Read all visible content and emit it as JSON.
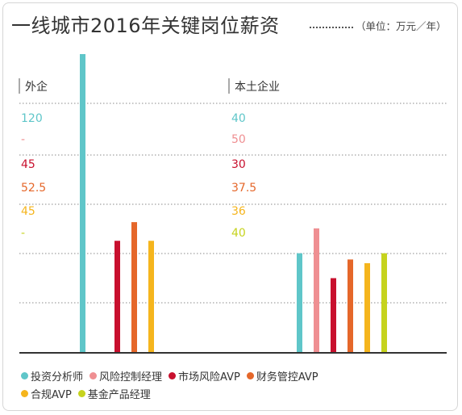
{
  "title": "一线城市2016年关键岗位薪资",
  "unit": "（单位：万元／年）",
  "chart_data": {
    "type": "bar",
    "title": "一线城市2016年关键岗位薪资",
    "unit": "（单位：万元／年）",
    "groups": [
      "外企",
      "本土企业"
    ],
    "series": [
      {
        "name": "投资分析师",
        "color": "#5fc6c9",
        "values": [
          120,
          40
        ],
        "labels": [
          "120",
          "40"
        ]
      },
      {
        "name": "风险控制经理",
        "color": "#ef8f92",
        "values": [
          null,
          50
        ],
        "labels": [
          "-",
          "50"
        ]
      },
      {
        "name": "市场风险AVP",
        "color": "#c8102e",
        "values": [
          45,
          30
        ],
        "labels": [
          "45",
          "30"
        ]
      },
      {
        "name": "财务管控AVP",
        "color": "#e5672a",
        "values": [
          52.5,
          37.5
        ],
        "labels": [
          "52.5",
          "37.5"
        ]
      },
      {
        "name": "合规AVP",
        "color": "#f5b51d",
        "values": [
          45,
          36
        ],
        "labels": [
          "45",
          "36"
        ]
      },
      {
        "name": "基金产品经理",
        "color": "#c6d31e",
        "values": [
          null,
          40
        ],
        "labels": [
          "-",
          "40"
        ]
      }
    ],
    "ylim": [
      0,
      120
    ],
    "grid": true,
    "legend_position": "bottom"
  }
}
